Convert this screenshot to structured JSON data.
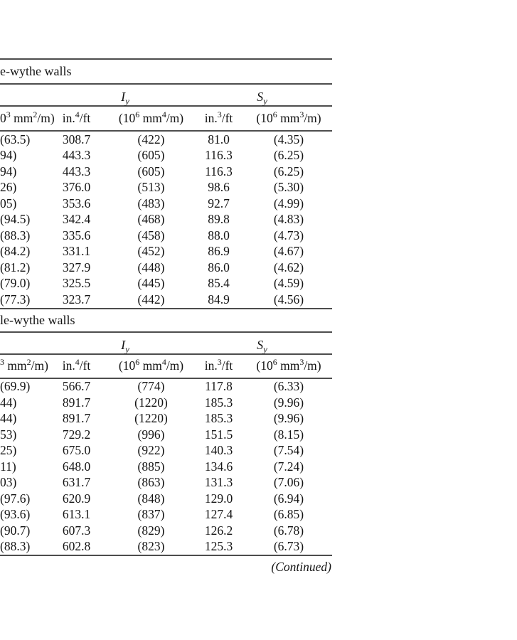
{
  "page": {
    "background": "#ffffff",
    "text_color": "#141414",
    "rule_color": "#4d4d4d"
  },
  "continued_label": "(Continued)",
  "tables": [
    {
      "section_label": "e-wythe walls",
      "group_headers": [
        "I_y",
        "S_y"
      ],
      "col_labels": [
        "0^3 mm^2/m)",
        "in.^4/ft",
        "(10^6 mm^4/m)",
        "in.^3/ft",
        "(10^6 mm^3/m)"
      ],
      "rows": [
        [
          "(63.5)",
          "308.7",
          "(422)",
          "81.0",
          "(4.35)"
        ],
        [
          "94)",
          "443.3",
          "(605)",
          "116.3",
          "(6.25)"
        ],
        [
          "94)",
          "443.3",
          "(605)",
          "116.3",
          "(6.25)"
        ],
        [
          "26)",
          "376.0",
          "(513)",
          "98.6",
          "(5.30)"
        ],
        [
          "05)",
          "353.6",
          "(483)",
          "92.7",
          "(4.99)"
        ],
        [
          "(94.5)",
          "342.4",
          "(468)",
          "89.8",
          "(4.83)"
        ],
        [
          "(88.3)",
          "335.6",
          "(458)",
          "88.0",
          "(4.73)"
        ],
        [
          "(84.2)",
          "331.1",
          "(452)",
          "86.9",
          "(4.67)"
        ],
        [
          "(81.2)",
          "327.9",
          "(448)",
          "86.0",
          "(4.62)"
        ],
        [
          "(79.0)",
          "325.5",
          "(445)",
          "85.4",
          "(4.59)"
        ],
        [
          "(77.3)",
          "323.7",
          "(442)",
          "84.9",
          "(4.56)"
        ]
      ]
    },
    {
      "section_label": "le-wythe walls",
      "group_headers": [
        "I_y",
        "S_y"
      ],
      "col_labels": [
        "^3 mm^2/m)",
        "in.^4/ft",
        "(10^6 mm^4/m)",
        "in.^3/ft",
        "(10^6 mm^3/m)"
      ],
      "rows": [
        [
          "(69.9)",
          "566.7",
          "(774)",
          "117.8",
          "(6.33)"
        ],
        [
          "44)",
          "891.7",
          "(1220)",
          "185.3",
          "(9.96)"
        ],
        [
          "44)",
          "891.7",
          "(1220)",
          "185.3",
          "(9.96)"
        ],
        [
          "53)",
          "729.2",
          "(996)",
          "151.5",
          "(8.15)"
        ],
        [
          "25)",
          "675.0",
          "(922)",
          "140.3",
          "(7.54)"
        ],
        [
          "11)",
          "648.0",
          "(885)",
          "134.6",
          "(7.24)"
        ],
        [
          "03)",
          "631.7",
          "(863)",
          "131.3",
          "(7.06)"
        ],
        [
          "(97.6)",
          "620.9",
          "(848)",
          "129.0",
          "(6.94)"
        ],
        [
          "(93.6)",
          "613.1",
          "(837)",
          "127.4",
          "(6.85)"
        ],
        [
          "(90.7)",
          "607.3",
          "(829)",
          "126.2",
          "(6.78)"
        ],
        [
          "(88.3)",
          "602.8",
          "(823)",
          "125.3",
          "(6.73)"
        ]
      ]
    }
  ]
}
